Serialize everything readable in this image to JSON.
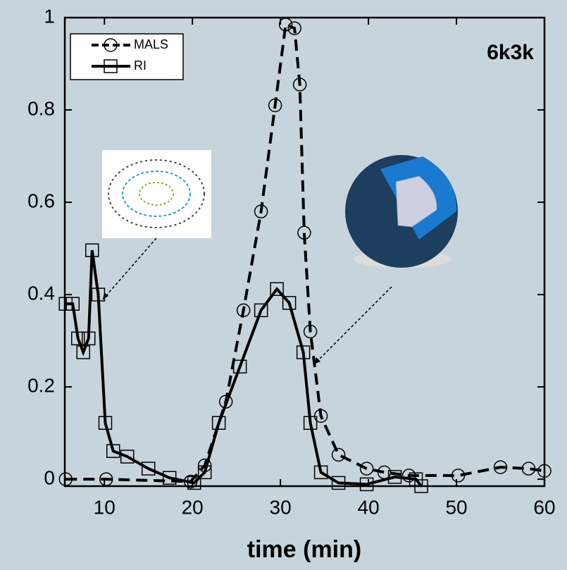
{
  "chart_data": {
    "type": "line",
    "annotation": "6k3k",
    "x_label": "time (min)",
    "xlim": [
      5.5,
      60
    ],
    "xticks": [
      10,
      20,
      30,
      40,
      50,
      60
    ],
    "ylim": [
      -0.015,
      1
    ],
    "yticks": [
      0,
      0.2,
      0.4,
      0.6,
      0.8,
      1
    ],
    "series": [
      {
        "name": "MALS",
        "color": "#000000",
        "dash": true,
        "marker": "circle",
        "x": [
          5.6,
          10.2,
          19.8,
          21.4,
          23.8,
          25.8,
          27.8,
          29.4,
          30.6,
          31.6,
          32.2,
          32.7,
          33.4,
          34.6,
          36.6,
          39.8,
          41.8,
          44.6,
          50.2,
          55,
          58.2,
          60
        ],
        "values": [
          0,
          0,
          -0.005,
          0.03,
          0.168,
          0.366,
          0.58,
          0.81,
          0.985,
          0.977,
          0.855,
          0.534,
          0.32,
          0.137,
          0.053,
          0.023,
          0.015,
          0.008,
          0.008,
          0.026,
          0.023,
          0.018
        ]
      },
      {
        "name": "RI",
        "color": "#000000",
        "dash": false,
        "marker": "square",
        "x": [
          5.6,
          6.4,
          7.0,
          7.6,
          8.2,
          8.6,
          9.3,
          10.1,
          11.0,
          12.6,
          15.0,
          17.4,
          20.2,
          21.4,
          23.0,
          25.4,
          27.8,
          29.6,
          31.0,
          32.6,
          33.4,
          34.6,
          36.6,
          39.8,
          43.0,
          45.4,
          46.0
        ],
        "values": [
          0.38,
          0.38,
          0.305,
          0.275,
          0.305,
          0.496,
          0.4,
          0.122,
          0.061,
          0.049,
          0.023,
          0.003,
          -0.008,
          0.015,
          0.122,
          0.244,
          0.366,
          0.412,
          0.382,
          0.275,
          0.122,
          0.015,
          -0.008,
          -0.011,
          0.005,
          0,
          -0.015
        ]
      }
    ]
  }
}
